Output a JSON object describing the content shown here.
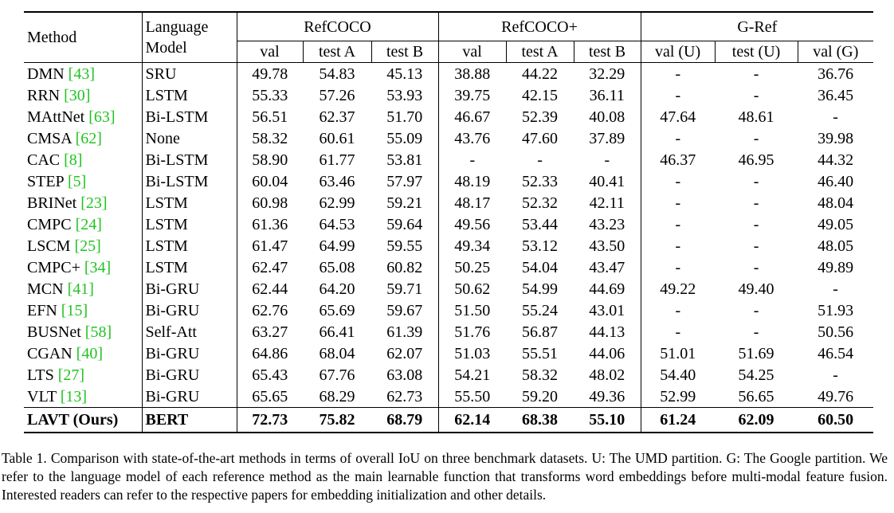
{
  "table": {
    "header": {
      "method": "Method",
      "language_model": [
        "Language",
        "Model"
      ],
      "groups": [
        {
          "name": "RefCOCO",
          "columns": [
            "val",
            "test A",
            "test B"
          ]
        },
        {
          "name": "RefCOCO+",
          "columns": [
            "val",
            "test A",
            "test B"
          ]
        },
        {
          "name": "G-Ref",
          "columns": [
            "val (U)",
            "test (U)",
            "val (G)"
          ]
        }
      ]
    },
    "rows": [
      {
        "method": "DMN",
        "ref": "[43]",
        "language_model": "SRU",
        "scores": [
          "49.78",
          "54.83",
          "45.13",
          "38.88",
          "44.22",
          "32.29",
          "-",
          "-",
          "36.76"
        ]
      },
      {
        "method": "RRN",
        "ref": "[30]",
        "language_model": "LSTM",
        "scores": [
          "55.33",
          "57.26",
          "53.93",
          "39.75",
          "42.15",
          "36.11",
          "-",
          "-",
          "36.45"
        ]
      },
      {
        "method": "MAttNet",
        "ref": "[63]",
        "language_model": "Bi-LSTM",
        "scores": [
          "56.51",
          "62.37",
          "51.70",
          "46.67",
          "52.39",
          "40.08",
          "47.64",
          "48.61",
          "-"
        ]
      },
      {
        "method": "CMSA",
        "ref": "[62]",
        "language_model": "None",
        "scores": [
          "58.32",
          "60.61",
          "55.09",
          "43.76",
          "47.60",
          "37.89",
          "-",
          "-",
          "39.98"
        ]
      },
      {
        "method": "CAC",
        "ref": "[8]",
        "language_model": "Bi-LSTM",
        "scores": [
          "58.90",
          "61.77",
          "53.81",
          "-",
          "-",
          "-",
          "46.37",
          "46.95",
          "44.32"
        ]
      },
      {
        "method": "STEP",
        "ref": "[5]",
        "language_model": "Bi-LSTM",
        "scores": [
          "60.04",
          "63.46",
          "57.97",
          "48.19",
          "52.33",
          "40.41",
          "-",
          "-",
          "46.40"
        ]
      },
      {
        "method": "BRINet",
        "ref": "[23]",
        "language_model": "LSTM",
        "scores": [
          "60.98",
          "62.99",
          "59.21",
          "48.17",
          "52.32",
          "42.11",
          "-",
          "-",
          "48.04"
        ]
      },
      {
        "method": "CMPC",
        "ref": "[24]",
        "language_model": "LSTM",
        "scores": [
          "61.36",
          "64.53",
          "59.64",
          "49.56",
          "53.44",
          "43.23",
          "-",
          "-",
          "49.05"
        ]
      },
      {
        "method": "LSCM",
        "ref": "[25]",
        "language_model": "LSTM",
        "scores": [
          "61.47",
          "64.99",
          "59.55",
          "49.34",
          "53.12",
          "43.50",
          "-",
          "-",
          "48.05"
        ]
      },
      {
        "method": "CMPC+",
        "ref": "[34]",
        "language_model": "LSTM",
        "scores": [
          "62.47",
          "65.08",
          "60.82",
          "50.25",
          "54.04",
          "43.47",
          "-",
          "-",
          "49.89"
        ]
      },
      {
        "method": "MCN",
        "ref": "[41]",
        "language_model": "Bi-GRU",
        "scores": [
          "62.44",
          "64.20",
          "59.71",
          "50.62",
          "54.99",
          "44.69",
          "49.22",
          "49.40",
          "-"
        ]
      },
      {
        "method": "EFN",
        "ref": "[15]",
        "language_model": "Bi-GRU",
        "scores": [
          "62.76",
          "65.69",
          "59.67",
          "51.50",
          "55.24",
          "43.01",
          "-",
          "-",
          "51.93"
        ]
      },
      {
        "method": "BUSNet",
        "ref": "[58]",
        "language_model": "Self-Att",
        "scores": [
          "63.27",
          "66.41",
          "61.39",
          "51.76",
          "56.87",
          "44.13",
          "-",
          "-",
          "50.56"
        ]
      },
      {
        "method": "CGAN",
        "ref": "[40]",
        "language_model": "Bi-GRU",
        "scores": [
          "64.86",
          "68.04",
          "62.07",
          "51.03",
          "55.51",
          "44.06",
          "51.01",
          "51.69",
          "46.54"
        ]
      },
      {
        "method": "LTS",
        "ref": "[27]",
        "language_model": "Bi-GRU",
        "scores": [
          "65.43",
          "67.76",
          "63.08",
          "54.21",
          "58.32",
          "48.02",
          "54.40",
          "54.25",
          "-"
        ]
      },
      {
        "method": "VLT",
        "ref": "[13]",
        "language_model": "Bi-GRU",
        "scores": [
          "65.65",
          "68.29",
          "62.73",
          "55.50",
          "59.20",
          "49.36",
          "52.99",
          "56.65",
          "49.76"
        ]
      }
    ],
    "ours": {
      "method": "LAVT (Ours)",
      "language_model": "BERT",
      "scores": [
        "72.73",
        "75.82",
        "68.79",
        "62.14",
        "68.38",
        "55.10",
        "61.24",
        "62.09",
        "60.50"
      ]
    }
  },
  "caption": "Table 1. Comparison with state-of-the-art methods in terms of overall IoU on three benchmark datasets. U: The UMD partition. G: The Google partition. We refer to the language model of each reference method as the main learnable function that transforms word embeddings before multi-modal feature fusion. Interested readers can refer to the respective papers for embedding initialization and other details."
}
